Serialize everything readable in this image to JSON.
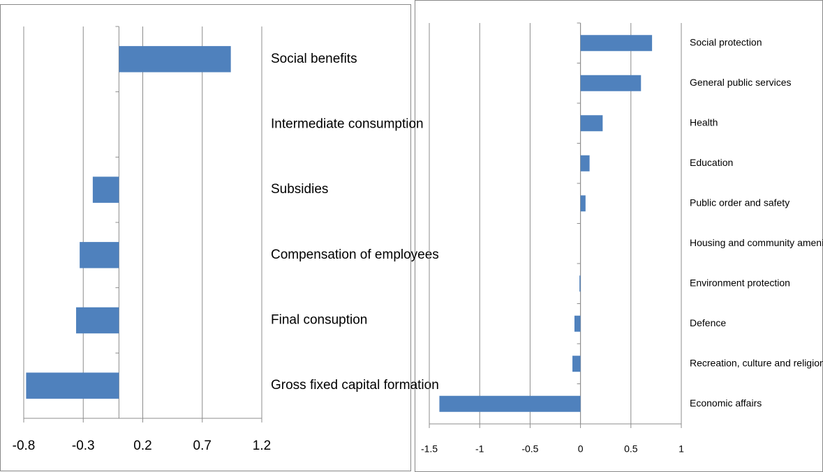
{
  "chart_data": [
    {
      "type": "bar",
      "orientation": "horizontal",
      "categories": [
        "Social benefits",
        "Intermediate consumption",
        "Subsidies",
        "Compensation of employees",
        "Final consuption",
        "Gross fixed capital formation"
      ],
      "values": [
        0.94,
        0,
        -0.22,
        -0.33,
        -0.36,
        -0.78
      ],
      "color": "#4f81bd",
      "xlim": [
        -0.8,
        1.2
      ],
      "xticks": [
        -0.8,
        -0.3,
        0.2,
        0.7,
        1.2
      ],
      "grid": true
    },
    {
      "type": "bar",
      "orientation": "horizontal",
      "categories": [
        "Social protection",
        "General public services",
        "Health",
        "Education",
        "Public order and safety",
        "Housing and community amenities",
        "Environment protection",
        "Defence",
        "Recreation, culture and religion",
        "Economic affairs"
      ],
      "values": [
        0.71,
        0.6,
        0.22,
        0.09,
        0.05,
        0,
        -0.01,
        -0.06,
        -0.08,
        -1.4
      ],
      "color": "#4f81bd",
      "xlim": [
        -1.5,
        1
      ],
      "xticks": [
        -1.5,
        -1,
        -0.5,
        0,
        0.5,
        1
      ],
      "grid": true
    }
  ]
}
